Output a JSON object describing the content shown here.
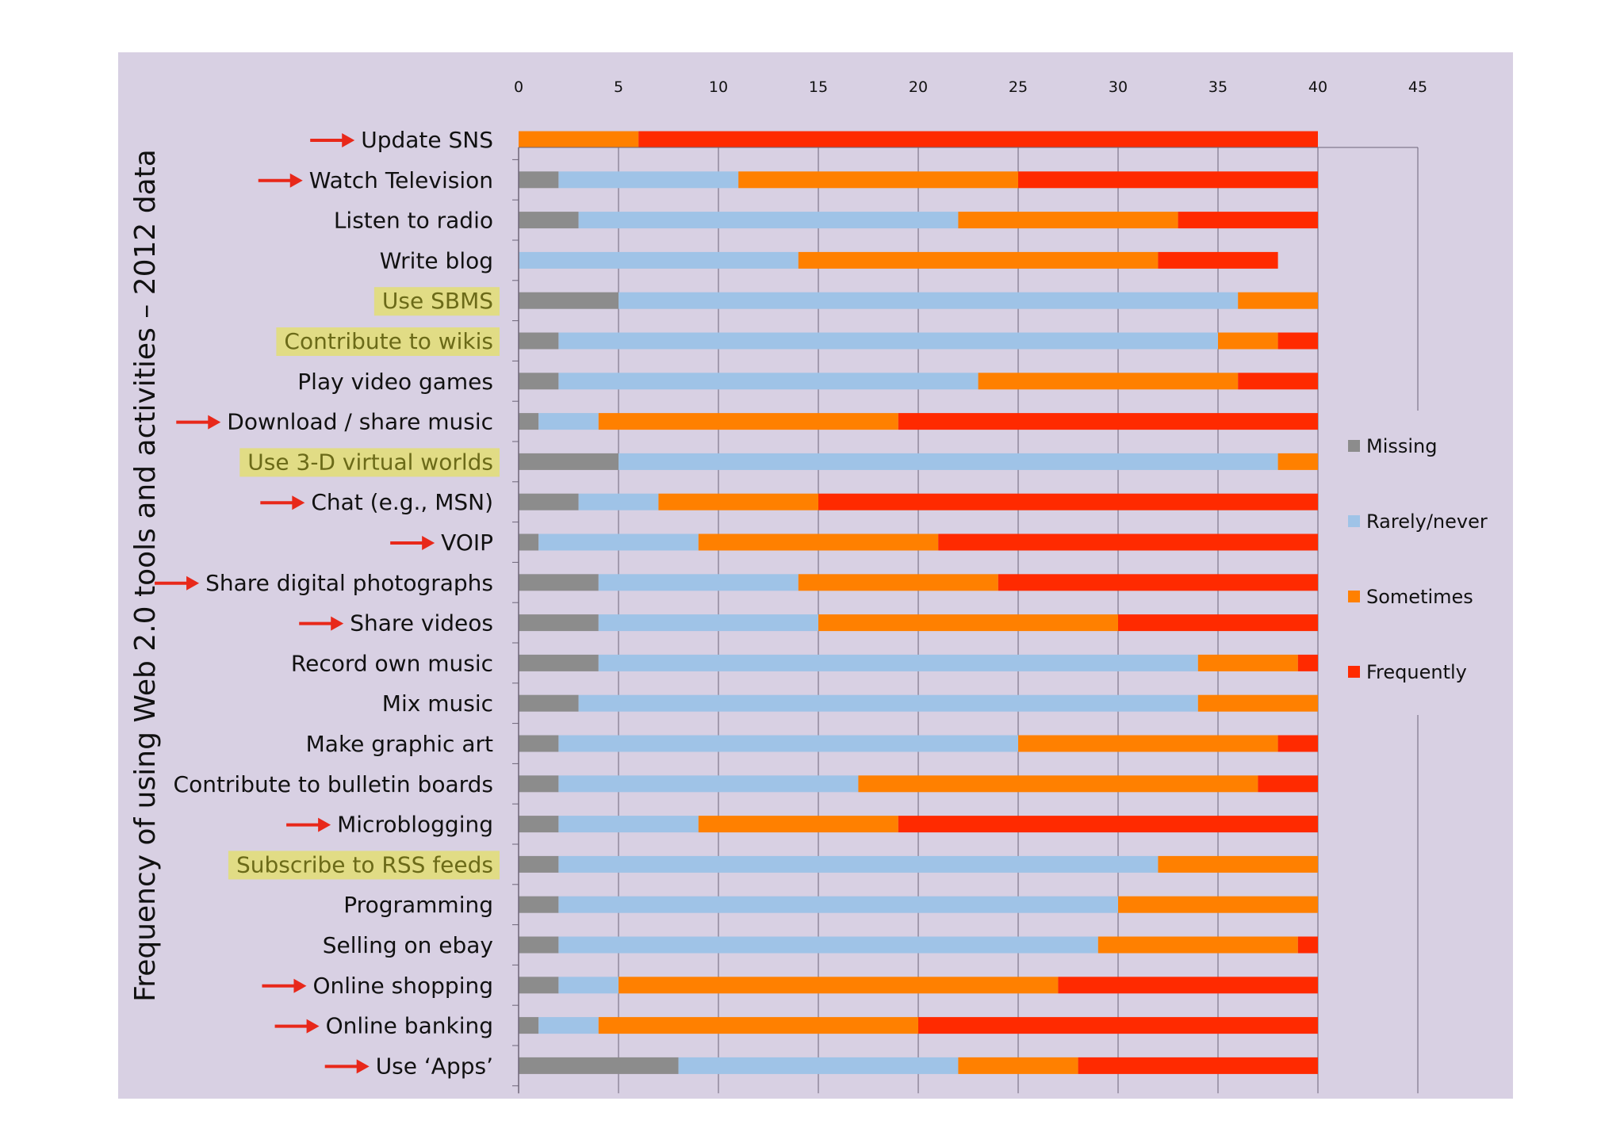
{
  "chart_data": {
    "type": "bar",
    "orientation": "horizontal",
    "stacked": true,
    "title": "Frequency of using Web 2.0 tools and activities – 2012 data",
    "ylabel": "Frequency of using Web 2.0 tools and activities – 2012 data",
    "xlabel": "",
    "xlim": [
      0,
      45
    ],
    "xticks": [
      "0",
      "5",
      "10",
      "15",
      "20",
      "25",
      "30",
      "35",
      "40",
      "45"
    ],
    "grid": true,
    "legend_position": "right",
    "colors": {
      "Missing": "#8c8c8c",
      "Rarely/never": "#9fc3e7",
      "Sometimes": "#ff8000",
      "Frequently": "#ff2a00",
      "highlight": "#e2dd7a",
      "arrow": "#e8281a"
    },
    "categories": [
      "Update SNS",
      "Watch Television",
      "Listen to radio",
      "Write blog",
      "Use SBMS",
      "Contribute to wikis",
      "Play video games",
      "Download / share music",
      "Use 3-D virtual worlds",
      "Chat (e.g., MSN)",
      "VOIP",
      "Share digital photographs",
      "Share videos",
      "Record own music",
      "Mix music",
      "Make graphic art",
      "Contribute to bulletin boards",
      "Microblogging",
      "Subscribe to RSS feeds",
      "Programming",
      "Selling on ebay",
      "Online shopping",
      "Online banking",
      "Use ‘Apps’"
    ],
    "highlighted": [
      "Use SBMS",
      "Contribute to wikis",
      "Use 3-D virtual worlds",
      "Subscribe to RSS feeds"
    ],
    "arrowed": [
      "Update SNS",
      "Watch Television",
      "Download / share music",
      "Chat (e.g., MSN)",
      "VOIP",
      "Share digital photographs",
      "Share videos",
      "Microblogging",
      "Online shopping",
      "Online banking",
      "Use ‘Apps’"
    ],
    "series": [
      {
        "name": "Missing",
        "values": [
          0,
          2,
          3,
          0,
          5,
          2,
          2,
          1,
          5,
          3,
          1,
          4,
          4,
          4,
          3,
          2,
          2,
          2,
          2,
          2,
          2,
          2,
          1,
          8
        ]
      },
      {
        "name": "Rarely/never",
        "values": [
          0,
          9,
          19,
          14,
          31,
          33,
          21,
          3,
          33,
          4,
          8,
          10,
          11,
          30,
          31,
          23,
          15,
          7,
          30,
          28,
          27,
          3,
          3,
          14
        ]
      },
      {
        "name": "Sometimes",
        "values": [
          6,
          14,
          11,
          18,
          4,
          3,
          13,
          15,
          2,
          8,
          12,
          10,
          15,
          5,
          6,
          13,
          20,
          10,
          8,
          10,
          10,
          22,
          16,
          6
        ]
      },
      {
        "name": "Frequently",
        "values": [
          34,
          15,
          7,
          6,
          0,
          2,
          4,
          21,
          0,
          25,
          19,
          16,
          10,
          1,
          0,
          2,
          3,
          21,
          0,
          0,
          1,
          13,
          20,
          12
        ]
      }
    ]
  }
}
